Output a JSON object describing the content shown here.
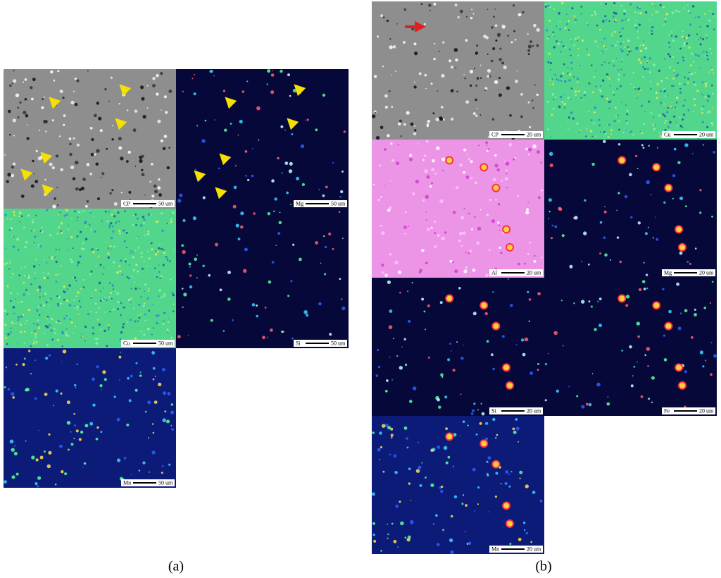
{
  "panels": [
    {
      "caption": "(a)",
      "tiles": [
        {
          "label": "CP",
          "scale": "50 um"
        },
        {
          "label": "Mg",
          "scale": "50 um"
        },
        {
          "label": "Cu",
          "scale": "50 um"
        },
        {
          "label": "Si",
          "scale": "50 um"
        },
        {
          "label": "Mn",
          "scale": "50 um"
        }
      ]
    },
    {
      "caption": "(b)",
      "tiles": [
        {
          "label": "CP",
          "scale": "20 um"
        },
        {
          "label": "Cu",
          "scale": "20 um"
        },
        {
          "label": "Al",
          "scale": "20 um"
        },
        {
          "label": "Mg",
          "scale": "20 um"
        },
        {
          "label": "Si",
          "scale": "20 um"
        },
        {
          "label": "Fe",
          "scale": "20 um"
        },
        {
          "label": "Mn",
          "scale": "20 um"
        }
      ]
    }
  ]
}
